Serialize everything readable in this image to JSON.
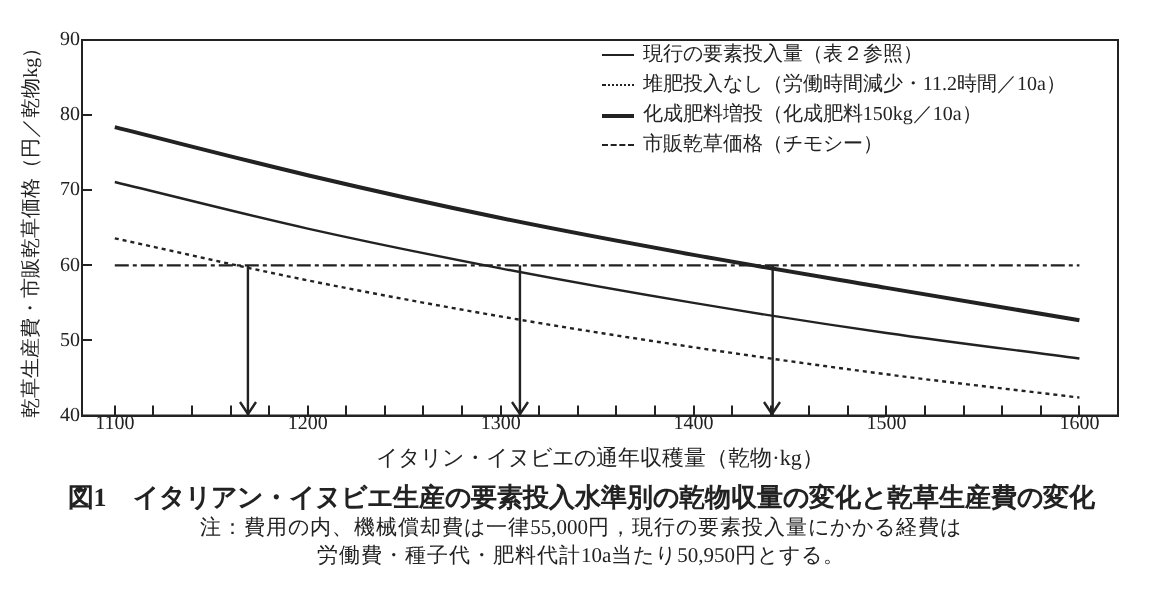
{
  "chart_data": {
    "type": "line",
    "title": "図1　イタリアン・イヌビエ生産の要素投入水準別の乾物収量の変化と乾草生産費の変化",
    "xlabel": "イタリン・イヌビエの通年収穫量（乾物·kg）",
    "ylabel": "乾草生産費・市販乾草価格（円／乾物kg）",
    "annotations": [
      "注：費用の内、機械償却費は一律55,000円，現行の要素投入量にかかる経費は",
      "労働費・種子代・肥料代計10a当たり50,950円とする。"
    ],
    "x": [
      1100,
      1200,
      1300,
      1400,
      1500,
      1600
    ],
    "series": [
      {
        "name": "現行の要素投入量（表２参照）",
        "color": "#222222",
        "line_style": "solid",
        "values": [
          71.1,
          64.9,
          59.6,
          55.0,
          51.0,
          47.6
        ]
      },
      {
        "name": "堆肥投入なし（労働時間減少・11.2時間／10a）",
        "color": "#222222",
        "line_style": "dotted",
        "values": [
          63.6,
          58.0,
          53.2,
          49.1,
          45.5,
          42.4
        ]
      },
      {
        "name": "化成肥料増投（化成肥料150kg／10a）",
        "color": "#222222",
        "line_style": "solid",
        "values": [
          78.4,
          72.0,
          66.3,
          61.4,
          57.0,
          52.7
        ]
      },
      {
        "name": "市販乾草価格（チモシー）",
        "color": "#222222",
        "line_style": "dashed",
        "x": [
          1100,
          1600
        ],
        "values": [
          60,
          60
        ]
      }
    ],
    "ref_lines": [
      {
        "axis": "x",
        "value": 1169,
        "color": "#222222"
      },
      {
        "axis": "x",
        "value": 1310,
        "color": "#222222"
      },
      {
        "axis": "x",
        "value": 1441,
        "color": "#222222"
      }
    ],
    "xlim": [
      1083,
      1620
    ],
    "xticks": [
      1100,
      {
        "value": 1120,
        "label": null
      },
      {
        "value": 1140,
        "label": null
      },
      {
        "value": 1160,
        "label": null
      },
      {
        "value": 1180,
        "label": null
      },
      1200,
      {
        "value": 1220,
        "label": null
      },
      {
        "value": 1240,
        "label": null
      },
      {
        "value": 1260,
        "label": null
      },
      {
        "value": 1280,
        "label": null
      },
      1300,
      {
        "value": 1320,
        "label": null
      },
      {
        "value": 1340,
        "label": null
      },
      {
        "value": 1360,
        "label": null
      },
      {
        "value": 1380,
        "label": null
      },
      1400,
      {
        "value": 1420,
        "label": null
      },
      {
        "value": 1440,
        "label": null
      },
      {
        "value": 1460,
        "label": null
      },
      {
        "value": 1480,
        "label": null
      },
      1500,
      {
        "value": 1520,
        "label": null
      },
      {
        "value": 1540,
        "label": null
      },
      {
        "value": 1560,
        "label": null
      },
      {
        "value": 1580,
        "label": null
      },
      1600
    ],
    "ylim": [
      40,
      90
    ],
    "yticks": [
      40,
      50,
      60,
      70,
      80,
      90
    ],
    "grid": false,
    "legend": "top right",
    "marker": "none"
  }
}
